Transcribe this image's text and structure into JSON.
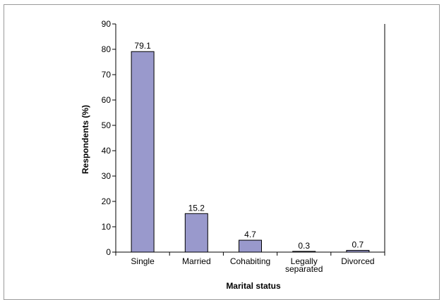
{
  "chart_data": {
    "type": "bar",
    "title": "",
    "xlabel": "Marital status",
    "ylabel": "Respondents (%)",
    "ylim": [
      0,
      90
    ],
    "yticks": [
      0,
      10,
      20,
      30,
      40,
      50,
      60,
      70,
      80,
      90
    ],
    "categories": [
      [
        "Single"
      ],
      [
        "Married"
      ],
      [
        "Cohabiting"
      ],
      [
        "Legally",
        "separated"
      ],
      [
        "Divorced"
      ]
    ],
    "values": [
      79.1,
      15.2,
      4.7,
      0.3,
      0.7
    ],
    "value_labels": [
      "79.1",
      "15.2",
      "4.7",
      "0.3",
      "0.7"
    ],
    "bar_color": "#9999cc",
    "bar_outline": "#000000",
    "grid": false,
    "legend": false
  }
}
